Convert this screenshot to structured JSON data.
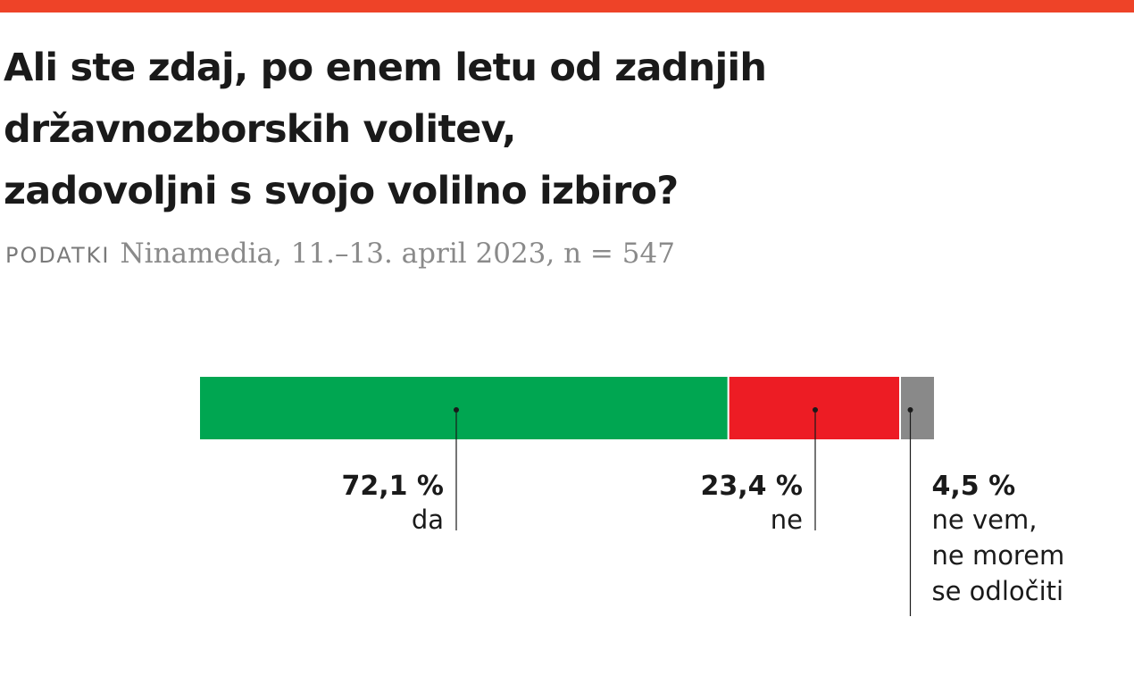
{
  "header": {
    "accent_color": "#ee4328",
    "title_lines": [
      "Ali ste zdaj, po enem letu od zadnjih",
      "državnozborskih volitev,",
      "zadovoljni s svojo volilno izbiro?"
    ],
    "source_label": "PODATKI",
    "source_text": "Ninamedia, 11.–13. april 2023, n = 547"
  },
  "chart_data": {
    "type": "bar",
    "stacked": true,
    "orientation": "horizontal",
    "title": "Ali ste zdaj, po enem letu od zadnjih državnozborskih volitev, zadovoljni s svojo volilno izbiro?",
    "unit": "%",
    "xlim": [
      0,
      100
    ],
    "grid": false,
    "segments": [
      {
        "value": 72.1,
        "value_label": "72,1 %",
        "label_lines": [
          "da"
        ],
        "color": "#00a651"
      },
      {
        "value": 23.4,
        "value_label": "23,4 %",
        "label_lines": [
          "ne"
        ],
        "color": "#ed1c24"
      },
      {
        "value": 4.5,
        "value_label": "4,5 %",
        "label_lines": [
          "ne vem,",
          "ne morem",
          "se odločiti"
        ],
        "color": "#898989"
      }
    ]
  }
}
